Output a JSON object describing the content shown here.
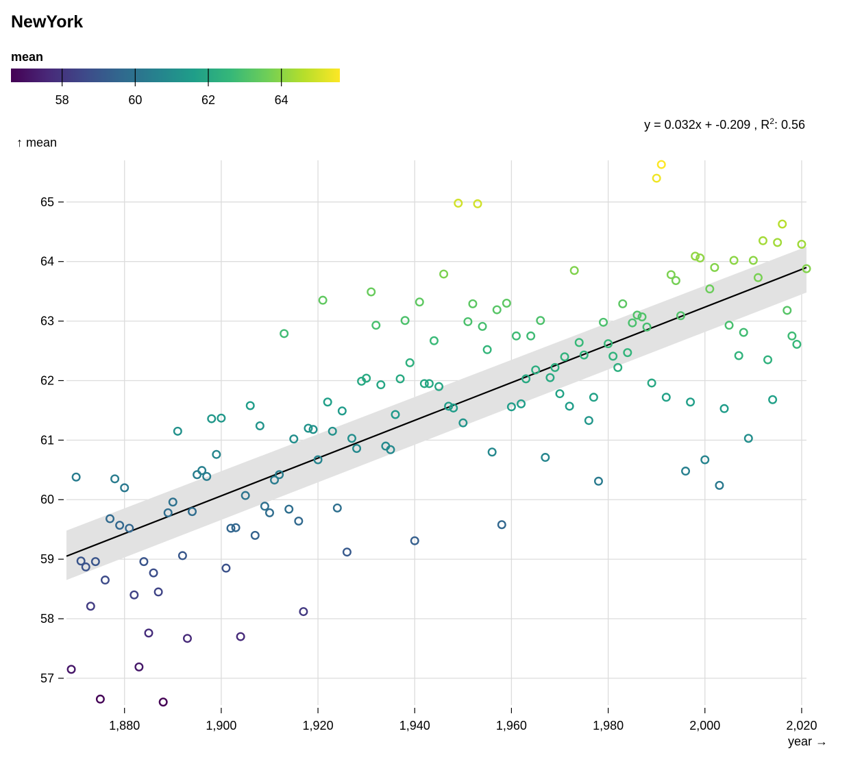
{
  "title": "NewYork",
  "legend": {
    "title": "mean",
    "domain": [
      56.6,
      65.6
    ],
    "ticks": [
      58,
      60,
      62,
      64
    ],
    "scheme": "viridis",
    "colors": [
      "#440154",
      "#482878",
      "#3e4989",
      "#31688e",
      "#26828e",
      "#1f9e89",
      "#35b779",
      "#6ece58",
      "#b5de2b",
      "#fde725"
    ]
  },
  "chart_data": {
    "type": "scatter",
    "title": "NewYork",
    "xlabel": "year →",
    "ylabel": "↑ mean",
    "xlim": [
      1868,
      2021
    ],
    "ylim": [
      56.55,
      65.7
    ],
    "xticks": [
      1880,
      1900,
      1920,
      1940,
      1960,
      1980,
      2000,
      2020
    ],
    "yticks": [
      57,
      58,
      59,
      60,
      61,
      62,
      63,
      64,
      65
    ],
    "grid": true,
    "regression": {
      "label": "y = 0.032x + -0.209 , R",
      "label_sup": "2",
      "label_tail": ": 0.56",
      "y_start": 59.05,
      "y_end": 63.9,
      "band_lower_start": 58.65,
      "band_upper_start": 59.48,
      "band_lower_end": 63.48,
      "band_upper_end": 64.25,
      "band_color": "#e2e2e2"
    },
    "x": [
      1869,
      1870,
      1871,
      1872,
      1873,
      1874,
      1876,
      1877,
      1878,
      1879,
      1880,
      1881,
      1882,
      1883,
      1884,
      1885,
      1886,
      1887,
      1888,
      1889,
      1890,
      1891,
      1892,
      1893,
      1894,
      1895,
      1896,
      1897,
      1898,
      1899,
      1900,
      1901,
      1902,
      1903,
      1904,
      1905,
      1906,
      1907,
      1908,
      1909,
      1910,
      1911,
      1912,
      1914,
      1915,
      1916,
      1917,
      1918,
      1919,
      1920,
      1921,
      1922,
      1923,
      1924,
      1925,
      1926,
      1927,
      1928,
      1929,
      1930,
      1931,
      1932,
      1933,
      1934,
      1935,
      1936,
      1937,
      1938,
      1939,
      1940,
      1941,
      1942,
      1943,
      1944,
      1945,
      1946,
      1947,
      1948,
      1949,
      1950,
      1951,
      1952,
      1953,
      1954,
      1955,
      1956,
      1957,
      1958,
      1959,
      1960,
      1961,
      1962,
      1963,
      1964,
      1965,
      1966,
      1967,
      1968,
      1969,
      1970,
      1971,
      1972,
      1973,
      1974,
      1975,
      1976,
      1977,
      1978,
      1979,
      1980,
      1981,
      1982,
      1983,
      1984,
      1985,
      1986,
      1987,
      1988,
      1989,
      1990,
      1991,
      1992,
      1993,
      1994,
      1995,
      1996,
      1997,
      1998,
      1999,
      2000,
      2001,
      2002,
      2003,
      2004,
      2005,
      2006,
      2007,
      2008,
      2009,
      2010,
      2011,
      2012,
      2013,
      2014,
      2015,
      2016,
      2017,
      2018,
      2019,
      2020,
      2021,
      1875,
      1913
    ],
    "y": [
      57.15,
      60.38,
      58.97,
      58.87,
      58.21,
      58.96,
      58.65,
      59.68,
      60.35,
      59.57,
      60.2,
      59.52,
      58.4,
      57.19,
      58.96,
      57.76,
      58.77,
      58.45,
      56.6,
      59.78,
      59.96,
      61.15,
      59.06,
      57.67,
      59.8,
      60.42,
      60.49,
      60.39,
      61.36,
      60.76,
      61.37,
      58.85,
      59.52,
      59.53,
      57.7,
      60.07,
      61.58,
      59.4,
      61.24,
      59.89,
      59.78,
      60.33,
      60.42,
      59.84,
      61.02,
      59.64,
      58.12,
      61.2,
      61.18,
      60.67,
      63.35,
      61.64,
      61.15,
      59.86,
      61.49,
      59.12,
      61.03,
      60.86,
      61.99,
      62.04,
      63.49,
      62.93,
      61.93,
      60.9,
      60.84,
      61.43,
      62.03,
      63.01,
      62.3,
      59.31,
      63.32,
      61.95,
      61.95,
      62.67,
      61.9,
      63.79,
      61.57,
      61.54,
      64.98,
      61.29,
      62.99,
      63.29,
      64.97,
      62.91,
      62.52,
      60.8,
      63.19,
      59.58,
      63.3,
      61.56,
      62.75,
      61.61,
      62.03,
      62.75,
      62.18,
      63.01,
      60.71,
      62.05,
      62.22,
      61.78,
      62.4,
      61.57,
      63.85,
      62.64,
      62.43,
      61.33,
      61.72,
      60.31,
      62.98,
      62.62,
      62.41,
      62.22,
      63.29,
      62.47,
      62.97,
      63.1,
      63.07,
      62.9,
      61.96,
      65.4,
      65.63,
      61.72,
      63.78,
      63.68,
      63.09,
      60.48,
      61.64,
      64.09,
      64.06,
      60.67,
      63.54,
      63.9,
      60.24,
      61.53,
      62.93,
      64.02,
      62.42,
      62.81,
      61.03,
      64.02,
      63.73,
      64.35,
      62.35,
      61.68,
      64.32,
      64.63,
      63.18,
      62.75,
      62.61,
      64.29,
      63.88,
      56.65,
      62.79
    ]
  }
}
